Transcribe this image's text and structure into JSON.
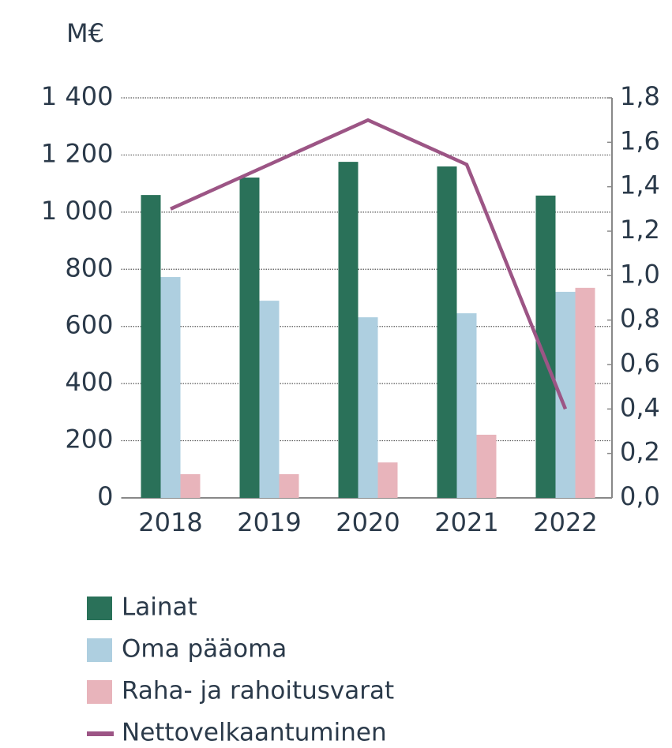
{
  "chart_data": {
    "type": "bar",
    "y_label": "M€",
    "categories": [
      "2018",
      "2019",
      "2020",
      "2021",
      "2022"
    ],
    "series": [
      {
        "name": "Lainat",
        "color": "#2a7159",
        "values": [
          1060,
          1121,
          1176,
          1160,
          1058
        ]
      },
      {
        "name": "Oma pääoma",
        "color": "#aecfe0",
        "values": [
          773,
          690,
          632,
          646,
          721
        ]
      },
      {
        "name": "Raha- ja rahoitusvarat",
        "color": "#e8b4bb",
        "values": [
          83,
          83,
          124,
          221,
          735
        ]
      },
      {
        "name": "Nettovelkaantuminen",
        "color": "#9c5585",
        "type": "line",
        "axis": "y2",
        "values": [
          1.3,
          1.5,
          1.7,
          1.5,
          0.4
        ]
      }
    ],
    "ylim": [
      0,
      1400
    ],
    "yticks": [
      0,
      200,
      400,
      600,
      800,
      {
        "value": 1000,
        "label": "1 000"
      },
      {
        "value": 1200,
        "label": "1 200"
      },
      {
        "value": 1400,
        "label": "1 400"
      }
    ],
    "y2lim": [
      0,
      1.8
    ],
    "y2ticks": [
      {
        "value": 0,
        "label": "0,0"
      },
      {
        "value": 0.2,
        "label": "0,2"
      },
      {
        "value": 0.4,
        "label": "0,4"
      },
      {
        "value": 0.6,
        "label": "0,6"
      },
      {
        "value": 0.8,
        "label": "0,8"
      },
      {
        "value": 1.0,
        "label": "1,0"
      },
      {
        "value": 1.2,
        "label": "1,2"
      },
      {
        "value": 1.4,
        "label": "1,4"
      },
      {
        "value": 1.6,
        "label": "1,6"
      },
      {
        "value": 1.8,
        "label": "1,8"
      }
    ],
    "grid": true
  }
}
